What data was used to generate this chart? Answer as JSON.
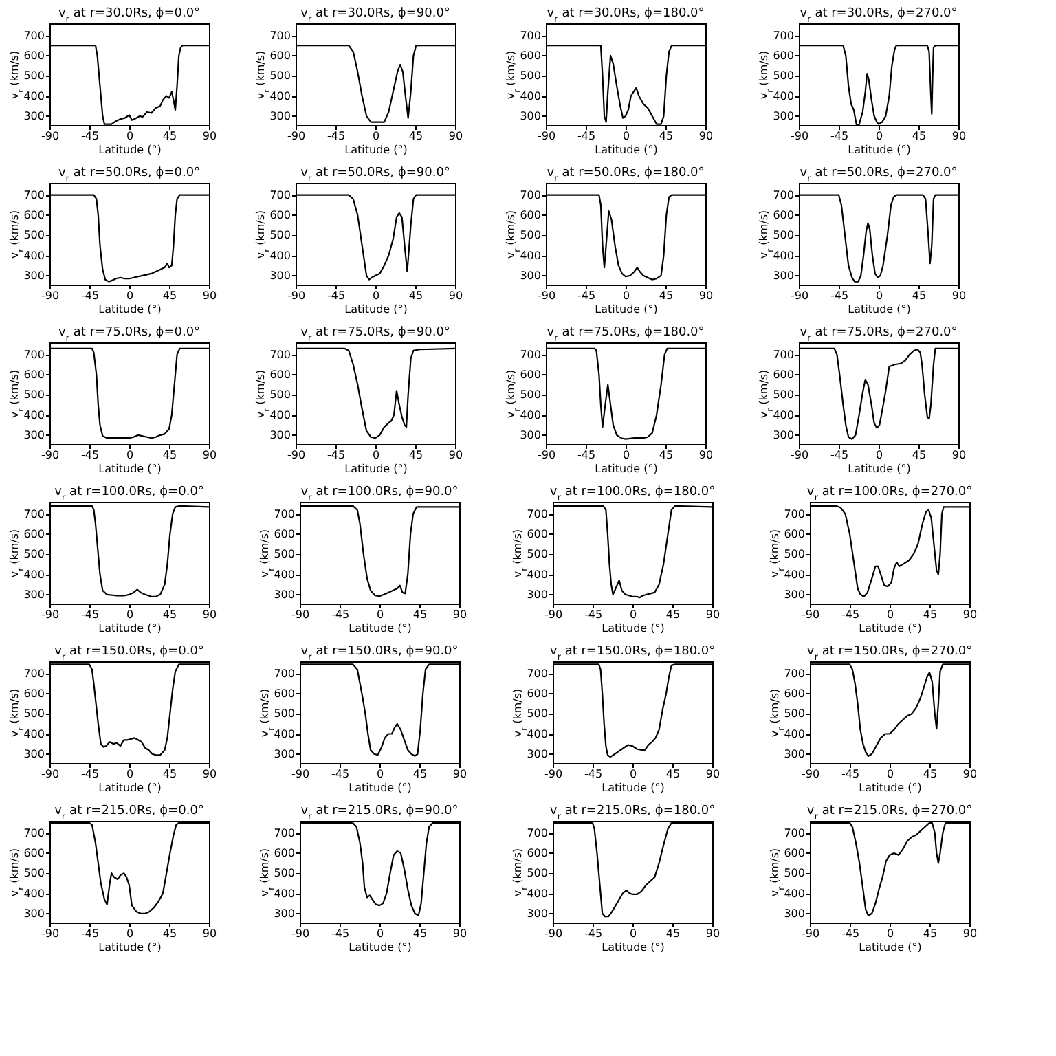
{
  "chart_data": [
    {
      "type": "line",
      "title": "v$_{r}$ at r=30.0Rs, ϕ=0.0°",
      "xlabel": "Latitude (°)",
      "ylabel": "v$_{r}$ (km/s)",
      "xlim": [
        -90,
        90
      ],
      "xticks": [
        -90,
        -45,
        0,
        45,
        90
      ],
      "ylim": [
        255,
        760
      ],
      "yticks": [
        300,
        400,
        500,
        600,
        700
      ],
      "series": [
        {
          "color": "#000000",
          "x": [
            -90,
            -38,
            -36,
            -33,
            -30,
            -28,
            -20,
            -15,
            -10,
            -5,
            0,
            3,
            8,
            12,
            15,
            20,
            25,
            30,
            35,
            38,
            42,
            45,
            48,
            50,
            52,
            54,
            56,
            58,
            60,
            90
          ],
          "values": [
            650,
            650,
            600,
            450,
            300,
            260,
            260,
            275,
            285,
            290,
            305,
            280,
            290,
            300,
            295,
            320,
            315,
            340,
            350,
            380,
            400,
            390,
            420,
            380,
            330,
            450,
            600,
            640,
            650,
            650
          ]
        }
      ]
    },
    {
      "type": "line",
      "title": "v$_{r}$ at r=30.0Rs, ϕ=90.0°",
      "xlabel": "Latitude (°)",
      "ylabel": "v$_{r}$ (km/s)",
      "xlim": [
        -90,
        90
      ],
      "xticks": [
        -90,
        -45,
        0,
        45,
        90
      ],
      "ylim": [
        255,
        760
      ],
      "yticks": [
        300,
        400,
        500,
        600,
        700
      ],
      "series": [
        {
          "color": "#000000",
          "x": [
            -90,
            -30,
            -25,
            -20,
            -15,
            -10,
            -5,
            0,
            10,
            15,
            20,
            25,
            28,
            31,
            34,
            37,
            40,
            43,
            46,
            90
          ],
          "values": [
            650,
            650,
            620,
            520,
            400,
            300,
            270,
            270,
            270,
            320,
            420,
            520,
            555,
            520,
            400,
            290,
            420,
            600,
            650,
            650
          ]
        }
      ]
    },
    {
      "type": "line",
      "title": "v$_{r}$ at r=30.0Rs, ϕ=180.0°",
      "xlabel": "Latitude (°)",
      "ylabel": "v$_{r}$ (km/s)",
      "xlim": [
        -90,
        90
      ],
      "xticks": [
        -90,
        -45,
        0,
        45,
        90
      ],
      "ylim": [
        255,
        760
      ],
      "yticks": [
        300,
        400,
        500,
        600,
        700
      ],
      "series": [
        {
          "color": "#000000",
          "x": [
            -90,
            -28,
            -26,
            -24,
            -22,
            -20,
            -17,
            -14,
            -10,
            -6,
            -3,
            0,
            3,
            6,
            9,
            12,
            15,
            20,
            25,
            30,
            35,
            40,
            43,
            46,
            49,
            52,
            90
          ],
          "values": [
            650,
            650,
            500,
            300,
            270,
            420,
            600,
            560,
            450,
            350,
            290,
            300,
            330,
            400,
            420,
            440,
            400,
            360,
            340,
            300,
            260,
            260,
            300,
            500,
            620,
            650,
            650
          ]
        }
      ]
    },
    {
      "type": "line",
      "title": "v$_{r}$ at r=30.0Rs, ϕ=270.0°",
      "xlabel": "Latitude (°)",
      "ylabel": "v$_{r}$ (km/s)",
      "xlim": [
        -90,
        90
      ],
      "xticks": [
        -90,
        -45,
        0,
        45,
        90
      ],
      "ylim": [
        255,
        760
      ],
      "yticks": [
        300,
        400,
        500,
        600,
        700
      ],
      "series": [
        {
          "color": "#000000",
          "x": [
            -90,
            -40,
            -37,
            -34,
            -31,
            -28,
            -25,
            -22,
            -18,
            -15,
            -13,
            -11,
            -8,
            -5,
            -2,
            0,
            4,
            8,
            12,
            15,
            18,
            20,
            55,
            57,
            59,
            60,
            61,
            62,
            64,
            90
          ],
          "values": [
            650,
            650,
            600,
            450,
            360,
            330,
            258,
            258,
            320,
            420,
            510,
            480,
            380,
            300,
            270,
            260,
            270,
            300,
            400,
            550,
            630,
            650,
            650,
            620,
            400,
            310,
            500,
            640,
            650,
            650
          ]
        }
      ]
    },
    {
      "type": "line",
      "title": "v$_{r}$ at r=50.0Rs, ϕ=0.0°",
      "xlabel": "Latitude (°)",
      "ylabel": "v$_{r}$ (km/s)",
      "xlim": [
        -90,
        90
      ],
      "xticks": [
        -90,
        -45,
        0,
        45,
        90
      ],
      "ylim": [
        255,
        760
      ],
      "yticks": [
        300,
        400,
        500,
        600,
        700
      ],
      "series": [
        {
          "color": "#000000",
          "x": [
            -90,
            -40,
            -37,
            -35,
            -33,
            -30,
            -27,
            -23,
            -20,
            -15,
            -10,
            -5,
            0,
            5,
            10,
            15,
            20,
            25,
            30,
            35,
            40,
            43,
            45,
            48,
            50,
            52,
            54,
            57,
            90
          ],
          "values": [
            700,
            700,
            680,
            600,
            450,
            330,
            280,
            270,
            275,
            285,
            290,
            285,
            285,
            290,
            295,
            300,
            305,
            310,
            320,
            330,
            340,
            360,
            340,
            350,
            450,
            600,
            680,
            700,
            700
          ]
        }
      ]
    },
    {
      "type": "line",
      "title": "v$_{r}$ at r=50.0Rs, ϕ=90.0°",
      "xlabel": "Latitude (°)",
      "ylabel": "v$_{r}$ (km/s)",
      "xlim": [
        -90,
        90
      ],
      "xticks": [
        -90,
        -45,
        0,
        45,
        90
      ],
      "ylim": [
        255,
        760
      ],
      "yticks": [
        300,
        400,
        500,
        600,
        700
      ],
      "series": [
        {
          "color": "#000000",
          "x": [
            -90,
            -30,
            -25,
            -20,
            -15,
            -10,
            -7,
            -4,
            0,
            5,
            10,
            15,
            20,
            24,
            27,
            30,
            33,
            36,
            40,
            43,
            46,
            90
          ],
          "values": [
            700,
            700,
            680,
            600,
            450,
            300,
            280,
            290,
            300,
            310,
            350,
            400,
            480,
            590,
            610,
            590,
            450,
            320,
            550,
            680,
            700,
            700
          ]
        }
      ]
    },
    {
      "type": "line",
      "title": "v$_{r}$ at r=50.0Rs, ϕ=180.0°",
      "xlabel": "Latitude (°)",
      "ylabel": "v$_{r}$ (km/s)",
      "xlim": [
        -90,
        90
      ],
      "xticks": [
        -90,
        -45,
        0,
        45,
        90
      ],
      "ylim": [
        255,
        760
      ],
      "yticks": [
        300,
        400,
        500,
        600,
        700
      ],
      "series": [
        {
          "color": "#000000",
          "x": [
            -90,
            -30,
            -28,
            -26,
            -24,
            -22,
            -19,
            -16,
            -12,
            -8,
            -4,
            0,
            5,
            10,
            13,
            16,
            20,
            25,
            30,
            35,
            40,
            43,
            46,
            49,
            52,
            90
          ],
          "values": [
            700,
            700,
            650,
            450,
            340,
            450,
            620,
            580,
            450,
            350,
            310,
            295,
            300,
            320,
            340,
            320,
            300,
            290,
            280,
            285,
            300,
            400,
            600,
            690,
            700,
            700
          ]
        }
      ]
    },
    {
      "type": "line",
      "title": "v$_{r}$ at r=50.0Rs, ϕ=270.0°",
      "xlabel": "Latitude (°)",
      "ylabel": "v$_{r}$ (km/s)",
      "xlim": [
        -90,
        90
      ],
      "xticks": [
        -90,
        -45,
        0,
        45,
        90
      ],
      "ylim": [
        255,
        760
      ],
      "yticks": [
        300,
        400,
        500,
        600,
        700
      ],
      "series": [
        {
          "color": "#000000",
          "x": [
            -90,
            -45,
            -42,
            -38,
            -34,
            -30,
            -27,
            -23,
            -20,
            -17,
            -14,
            -12,
            -10,
            -7,
            -4,
            -1,
            2,
            5,
            10,
            14,
            17,
            20,
            50,
            53,
            56,
            58,
            60,
            62,
            64,
            90
          ],
          "values": [
            700,
            700,
            650,
            500,
            350,
            290,
            270,
            270,
            300,
            400,
            520,
            560,
            530,
            400,
            310,
            290,
            300,
            350,
            500,
            650,
            690,
            700,
            700,
            680,
            500,
            360,
            450,
            680,
            700,
            700
          ]
        }
      ]
    },
    {
      "type": "line",
      "title": "v$_{r}$ at r=75.0Rs, ϕ=0.0°",
      "xlabel": "Latitude (°)",
      "ylabel": "v$_{r}$ (km/s)",
      "xlim": [
        -90,
        90
      ],
      "xticks": [
        -90,
        -45,
        0,
        45,
        90
      ],
      "ylim": [
        255,
        760
      ],
      "yticks": [
        300,
        400,
        500,
        600,
        700
      ],
      "series": [
        {
          "color": "#000000",
          "x": [
            -90,
            -42,
            -40,
            -37,
            -35,
            -33,
            -30,
            -25,
            -15,
            -5,
            0,
            5,
            10,
            15,
            20,
            25,
            30,
            35,
            40,
            45,
            48,
            50,
            52,
            54,
            57,
            90
          ],
          "values": [
            730,
            730,
            710,
            600,
            450,
            350,
            295,
            285,
            285,
            285,
            285,
            290,
            300,
            295,
            290,
            285,
            290,
            300,
            305,
            330,
            400,
            500,
            600,
            700,
            730,
            730
          ]
        }
      ]
    },
    {
      "type": "line",
      "title": "v$_{r}$ at r=75.0Rs, ϕ=90.0°",
      "xlabel": "Latitude (°)",
      "ylabel": "v$_{r}$ (km/s)",
      "xlim": [
        -90,
        90
      ],
      "xticks": [
        -90,
        -45,
        0,
        45,
        90
      ],
      "ylim": [
        255,
        760
      ],
      "yticks": [
        300,
        400,
        500,
        600,
        700
      ],
      "series": [
        {
          "color": "#000000",
          "x": [
            -90,
            -35,
            -30,
            -25,
            -20,
            -15,
            -10,
            -5,
            0,
            5,
            10,
            15,
            18,
            21,
            24,
            27,
            30,
            33,
            35,
            37,
            40,
            43,
            50,
            90
          ],
          "values": [
            730,
            730,
            720,
            650,
            550,
            430,
            320,
            290,
            285,
            300,
            340,
            360,
            370,
            400,
            520,
            450,
            390,
            350,
            340,
            500,
            680,
            720,
            725,
            730
          ]
        }
      ]
    },
    {
      "type": "line",
      "title": "v$_{r}$ at r=75.0Rs, ϕ=180.0°",
      "xlabel": "Latitude (°)",
      "ylabel": "v$_{r}$ (km/s)",
      "xlim": [
        -90,
        90
      ],
      "xticks": [
        -90,
        -45,
        0,
        45,
        90
      ],
      "ylim": [
        255,
        760
      ],
      "yticks": [
        300,
        400,
        500,
        600,
        700
      ],
      "series": [
        {
          "color": "#000000",
          "x": [
            -90,
            -35,
            -33,
            -30,
            -28,
            -26,
            -23,
            -20,
            -17,
            -14,
            -10,
            -5,
            0,
            10,
            20,
            25,
            30,
            35,
            40,
            44,
            47,
            90
          ],
          "values": [
            730,
            730,
            720,
            600,
            450,
            340,
            450,
            550,
            450,
            350,
            300,
            285,
            280,
            285,
            285,
            290,
            310,
            400,
            550,
            700,
            730,
            730
          ]
        }
      ]
    },
    {
      "type": "line",
      "title": "v$_{r}$ at r=75.0Rs, ϕ=270.0°",
      "xlabel": "Latitude (°)",
      "ylabel": "v$_{r}$ (km/s)",
      "xlim": [
        -90,
        90
      ],
      "xticks": [
        -90,
        -45,
        0,
        45,
        90
      ],
      "ylim": [
        255,
        760
      ],
      "yticks": [
        300,
        400,
        500,
        600,
        700
      ],
      "series": [
        {
          "color": "#000000",
          "x": [
            -90,
            -50,
            -47,
            -44,
            -40,
            -37,
            -34,
            -30,
            -26,
            -22,
            -18,
            -15,
            -12,
            -8,
            -5,
            -2,
            1,
            4,
            8,
            12,
            18,
            25,
            30,
            35,
            40,
            44,
            47,
            49,
            52,
            55,
            57,
            59,
            62,
            64,
            90
          ],
          "values": [
            730,
            730,
            700,
            600,
            450,
            350,
            290,
            280,
            300,
            400,
            510,
            575,
            550,
            450,
            360,
            335,
            350,
            420,
            520,
            640,
            650,
            655,
            670,
            700,
            720,
            725,
            710,
            650,
            500,
            390,
            380,
            450,
            650,
            730,
            730
          ]
        }
      ]
    },
    {
      "type": "line",
      "title": "v$_{r}$ at r=100.0Rs, ϕ=0.0°",
      "xlabel": "Latitude (°)",
      "ylabel": "v$_{r}$ (km/s)",
      "xlim": [
        -90,
        90
      ],
      "xticks": [
        -90,
        -45,
        0,
        45,
        90
      ],
      "ylim": [
        255,
        760
      ],
      "yticks": [
        300,
        400,
        500,
        600,
        700
      ],
      "series": [
        {
          "color": "#000000",
          "x": [
            -90,
            -42,
            -40,
            -38,
            -35,
            -33,
            -30,
            -25,
            -15,
            -5,
            0,
            5,
            9,
            13,
            18,
            25,
            30,
            35,
            40,
            43,
            46,
            49,
            52,
            57,
            90
          ],
          "values": [
            740,
            740,
            720,
            650,
            500,
            400,
            320,
            300,
            295,
            295,
            300,
            310,
            325,
            310,
            300,
            290,
            290,
            300,
            350,
            450,
            600,
            700,
            735,
            740,
            735
          ]
        }
      ]
    },
    {
      "type": "line",
      "title": "v$_{r}$ at r=100.0Rs, ϕ=90.0°",
      "xlabel": "Latitude (°)",
      "ylabel": "v$_{r}$ (km/s)",
      "xlim": [
        -90,
        90
      ],
      "xticks": [
        -90,
        -45,
        0,
        45,
        90
      ],
      "ylim": [
        255,
        760
      ],
      "yticks": [
        300,
        400,
        500,
        600,
        700
      ],
      "series": [
        {
          "color": "#000000",
          "x": [
            -90,
            -30,
            -25,
            -22,
            -18,
            -14,
            -10,
            -5,
            0,
            5,
            10,
            15,
            20,
            23,
            26,
            29,
            32,
            35,
            38,
            42,
            90
          ],
          "values": [
            740,
            740,
            720,
            650,
            500,
            380,
            320,
            295,
            292,
            300,
            310,
            320,
            330,
            345,
            310,
            305,
            400,
            600,
            700,
            735,
            735
          ]
        }
      ]
    },
    {
      "type": "line",
      "title": "v$_{r}$ at r=100.0Rs, ϕ=180.0°",
      "xlabel": "Latitude (°)",
      "ylabel": "v$_{r}$ (km/s)",
      "xlim": [
        -90,
        90
      ],
      "xticks": [
        -90,
        -45,
        0,
        45,
        90
      ],
      "ylim": [
        255,
        760
      ],
      "yticks": [
        300,
        400,
        500,
        600,
        700
      ],
      "series": [
        {
          "color": "#000000",
          "x": [
            -90,
            -33,
            -30,
            -28,
            -26,
            -24,
            -22,
            -20,
            -17,
            -15,
            -12,
            -8,
            -4,
            0,
            5,
            8,
            12,
            16,
            20,
            25,
            30,
            35,
            40,
            44,
            48,
            90
          ],
          "values": [
            740,
            740,
            720,
            600,
            450,
            350,
            300,
            320,
            350,
            370,
            320,
            300,
            295,
            290,
            290,
            285,
            295,
            300,
            305,
            310,
            350,
            450,
            600,
            720,
            740,
            735
          ]
        }
      ]
    },
    {
      "type": "line",
      "title": "v$_{r}$ at r=100.0Rs, ϕ=270.0°",
      "xlabel": "Latitude (°)",
      "ylabel": "v$_{r}$ (km/s)",
      "xlim": [
        -90,
        90
      ],
      "xticks": [
        -90,
        -45,
        0,
        45,
        90
      ],
      "ylim": [
        255,
        760
      ],
      "yticks": [
        300,
        400,
        500,
        600,
        700
      ],
      "series": [
        {
          "color": "#000000",
          "x": [
            -90,
            -60,
            -55,
            -50,
            -45,
            -40,
            -36,
            -33,
            -29,
            -25,
            -20,
            -16,
            -13,
            -10,
            -6,
            -2,
            2,
            5,
            8,
            11,
            15,
            22,
            27,
            32,
            37,
            41,
            44,
            47,
            50,
            53,
            55,
            57,
            59,
            61,
            90
          ],
          "values": [
            740,
            740,
            730,
            700,
            600,
            450,
            330,
            300,
            290,
            310,
            380,
            440,
            440,
            400,
            345,
            340,
            360,
            430,
            460,
            440,
            450,
            470,
            500,
            550,
            650,
            710,
            720,
            680,
            550,
            420,
            400,
            500,
            700,
            735,
            735
          ]
        }
      ]
    },
    {
      "type": "line",
      "title": "v$_{r}$ at r=150.0Rs, ϕ=0.0°",
      "xlabel": "Latitude (°)",
      "ylabel": "v$_{r}$ (km/s)",
      "xlim": [
        -90,
        90
      ],
      "xticks": [
        -90,
        -45,
        0,
        45,
        90
      ],
      "ylim": [
        255,
        760
      ],
      "yticks": [
        300,
        400,
        500,
        600,
        700
      ],
      "series": [
        {
          "color": "#000000",
          "x": [
            -90,
            -45,
            -42,
            -40,
            -37,
            -35,
            -32,
            -29,
            -26,
            -22,
            -18,
            -14,
            -10,
            -6,
            -2,
            2,
            6,
            10,
            14,
            18,
            22,
            26,
            30,
            35,
            40,
            43,
            46,
            49,
            52,
            56,
            90
          ],
          "values": [
            745,
            745,
            720,
            650,
            530,
            450,
            350,
            335,
            340,
            360,
            350,
            355,
            340,
            370,
            370,
            375,
            380,
            370,
            360,
            330,
            320,
            300,
            295,
            295,
            320,
            380,
            500,
            620,
            710,
            745,
            745
          ]
        }
      ]
    },
    {
      "type": "line",
      "title": "v$_{r}$ at r=150.0Rs, ϕ=90.0°",
      "xlabel": "Latitude (°)",
      "ylabel": "v$_{r}$ (km/s)",
      "xlim": [
        -90,
        90
      ],
      "xticks": [
        -90,
        -45,
        0,
        45,
        90
      ],
      "ylim": [
        255,
        760
      ],
      "yticks": [
        300,
        400,
        500,
        600,
        700
      ],
      "series": [
        {
          "color": "#000000",
          "x": [
            -90,
            -30,
            -25,
            -22,
            -19,
            -16,
            -13,
            -10,
            -6,
            -2,
            2,
            6,
            10,
            14,
            17,
            20,
            24,
            28,
            32,
            36,
            40,
            43,
            46,
            49,
            52,
            56,
            90
          ],
          "values": [
            745,
            745,
            720,
            650,
            580,
            500,
            400,
            320,
            300,
            295,
            330,
            380,
            400,
            400,
            430,
            450,
            420,
            370,
            320,
            300,
            290,
            300,
            420,
            600,
            720,
            745,
            745
          ]
        }
      ]
    },
    {
      "type": "line",
      "title": "v$_{r}$ at r=150.0Rs, ϕ=180.0°",
      "xlabel": "Latitude (°)",
      "ylabel": "v$_{r}$ (km/s)",
      "xlim": [
        -90,
        90
      ],
      "xticks": [
        -90,
        -45,
        0,
        45,
        90
      ],
      "ylim": [
        255,
        760
      ],
      "yticks": [
        300,
        400,
        500,
        600,
        700
      ],
      "series": [
        {
          "color": "#000000",
          "x": [
            -90,
            -38,
            -36,
            -34,
            -32,
            -30,
            -28,
            -25,
            -20,
            -15,
            -10,
            -5,
            0,
            5,
            10,
            14,
            18,
            22,
            26,
            30,
            34,
            38,
            41,
            44,
            48,
            90
          ],
          "values": [
            745,
            745,
            720,
            600,
            450,
            340,
            295,
            285,
            300,
            315,
            330,
            345,
            340,
            325,
            320,
            320,
            345,
            360,
            380,
            420,
            520,
            600,
            680,
            740,
            745,
            745
          ]
        }
      ]
    },
    {
      "type": "line",
      "title": "v$_{r}$ at r=150.0Rs, ϕ=270.0°",
      "xlabel": "Latitude (°)",
      "ylabel": "v$_{r}$ (km/s)",
      "xlim": [
        -90,
        90
      ],
      "xticks": [
        -90,
        -45,
        0,
        45,
        90
      ],
      "ylim": [
        255,
        760
      ],
      "yticks": [
        300,
        400,
        500,
        600,
        700
      ],
      "series": [
        {
          "color": "#000000",
          "x": [
            -90,
            -45,
            -42,
            -39,
            -36,
            -33,
            -30,
            -27,
            -24,
            -20,
            -15,
            -10,
            -5,
            0,
            5,
            10,
            15,
            20,
            25,
            30,
            35,
            40,
            42,
            45,
            48,
            51,
            53,
            55,
            57,
            60,
            90
          ],
          "values": [
            745,
            745,
            720,
            650,
            550,
            420,
            350,
            310,
            290,
            300,
            340,
            380,
            400,
            400,
            420,
            450,
            470,
            490,
            500,
            530,
            580,
            650,
            680,
            705,
            660,
            500,
            425,
            550,
            710,
            745,
            745
          ]
        }
      ]
    },
    {
      "type": "line",
      "title": "v$_{r}$ at r=215.0Rs, ϕ=0.0°",
      "xlabel": "Latitude (°)",
      "ylabel": "v$_{r}$ (km/s)",
      "xlim": [
        -90,
        90
      ],
      "xticks": [
        -90,
        -45,
        0,
        45,
        90
      ],
      "ylim": [
        255,
        760
      ],
      "yticks": [
        300,
        400,
        500,
        600,
        700
      ],
      "series": [
        {
          "color": "#000000",
          "x": [
            -90,
            -45,
            -42,
            -38,
            -35,
            -32,
            -28,
            -25,
            -22,
            -20,
            -17,
            -13,
            -10,
            -6,
            -3,
            0,
            3,
            8,
            13,
            18,
            23,
            28,
            33,
            38,
            42,
            46,
            50,
            53,
            56,
            90
          ],
          "values": [
            750,
            750,
            740,
            650,
            550,
            450,
            370,
            345,
            450,
            500,
            480,
            470,
            490,
            500,
            480,
            440,
            340,
            310,
            300,
            300,
            310,
            330,
            360,
            400,
            500,
            600,
            690,
            740,
            750,
            750
          ]
        }
      ]
    },
    {
      "type": "line",
      "title": "v$_{r}$ at r=215.0Rs, ϕ=90.0°",
      "xlabel": "Latitude (°)",
      "ylabel": "v$_{r}$ (km/s)",
      "xlim": [
        -90,
        90
      ],
      "xticks": [
        -90,
        -45,
        0,
        45,
        90
      ],
      "ylim": [
        255,
        760
      ],
      "yticks": [
        300,
        400,
        500,
        600,
        700
      ],
      "series": [
        {
          "color": "#000000",
          "x": [
            -90,
            -30,
            -26,
            -22,
            -19,
            -17,
            -14,
            -11,
            -8,
            -4,
            0,
            4,
            8,
            12,
            16,
            20,
            24,
            28,
            32,
            36,
            40,
            44,
            47,
            50,
            53,
            56,
            60,
            90
          ],
          "values": [
            750,
            750,
            730,
            650,
            550,
            430,
            380,
            390,
            370,
            345,
            340,
            350,
            400,
            500,
            590,
            610,
            600,
            520,
            420,
            340,
            300,
            290,
            350,
            500,
            650,
            730,
            750,
            750
          ]
        }
      ]
    },
    {
      "type": "line",
      "title": "v$_{r}$ at r=215.0Rs, ϕ=180.0°",
      "xlabel": "Latitude (°)",
      "ylabel": "v$_{r}$ (km/s)",
      "xlim": [
        -90,
        90
      ],
      "xticks": [
        -90,
        -45,
        0,
        45,
        90
      ],
      "ylim": [
        255,
        760
      ],
      "yticks": [
        300,
        400,
        500,
        600,
        700
      ],
      "series": [
        {
          "color": "#000000",
          "x": [
            -90,
            -45,
            -43,
            -40,
            -37,
            -34,
            -31,
            -27,
            -23,
            -19,
            -15,
            -11,
            -7,
            -3,
            0,
            5,
            10,
            15,
            20,
            25,
            30,
            35,
            40,
            44,
            90
          ],
          "values": [
            750,
            750,
            720,
            600,
            450,
            300,
            285,
            285,
            310,
            340,
            370,
            400,
            415,
            400,
            395,
            395,
            410,
            440,
            460,
            480,
            550,
            640,
            720,
            750,
            750
          ]
        }
      ]
    },
    {
      "type": "line",
      "title": "v$_{r}$ at r=215.0Rs, ϕ=270.0°",
      "xlabel": "Latitude (°)",
      "ylabel": "v$_{r}$ (km/s)",
      "xlim": [
        -90,
        90
      ],
      "xticks": [
        -90,
        -45,
        0,
        45,
        90
      ],
      "ylim": [
        255,
        760
      ],
      "yticks": [
        300,
        400,
        500,
        600,
        700
      ],
      "series": [
        {
          "color": "#000000",
          "x": [
            -90,
            -45,
            -42,
            -38,
            -34,
            -30,
            -27,
            -24,
            -20,
            -16,
            -12,
            -8,
            -4,
            0,
            5,
            10,
            15,
            20,
            25,
            30,
            35,
            40,
            45,
            48,
            51,
            53,
            55,
            57,
            60,
            63,
            90
          ],
          "values": [
            750,
            750,
            730,
            650,
            550,
            420,
            320,
            290,
            300,
            350,
            420,
            480,
            560,
            590,
            600,
            590,
            620,
            660,
            680,
            690,
            710,
            730,
            750,
            750,
            700,
            600,
            550,
            600,
            700,
            750,
            750
          ]
        }
      ]
    }
  ]
}
